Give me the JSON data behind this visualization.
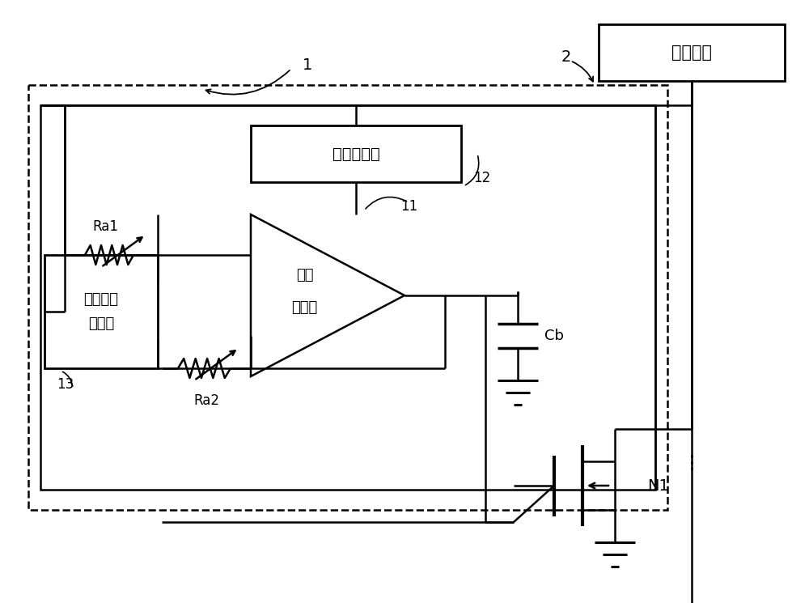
{
  "bg_color": "#ffffff",
  "line_color": "#000000",
  "box_supply_text": "供电模块",
  "box_neg_text": "负压发生器",
  "box_ref_line1": "基准电压",
  "box_ref_line2": "发生器",
  "box_opamp_line1": "运算",
  "box_opamp_line2": "放大器",
  "label_1": "1",
  "label_2": "2",
  "label_11": "11",
  "label_12": "12",
  "label_13": "13",
  "label_Ra1": "Ra1",
  "label_Ra2": "Ra2",
  "label_Cb": "Cb",
  "label_N1": "N1",
  "figsize": [
    10.0,
    7.45
  ],
  "dpi": 100
}
